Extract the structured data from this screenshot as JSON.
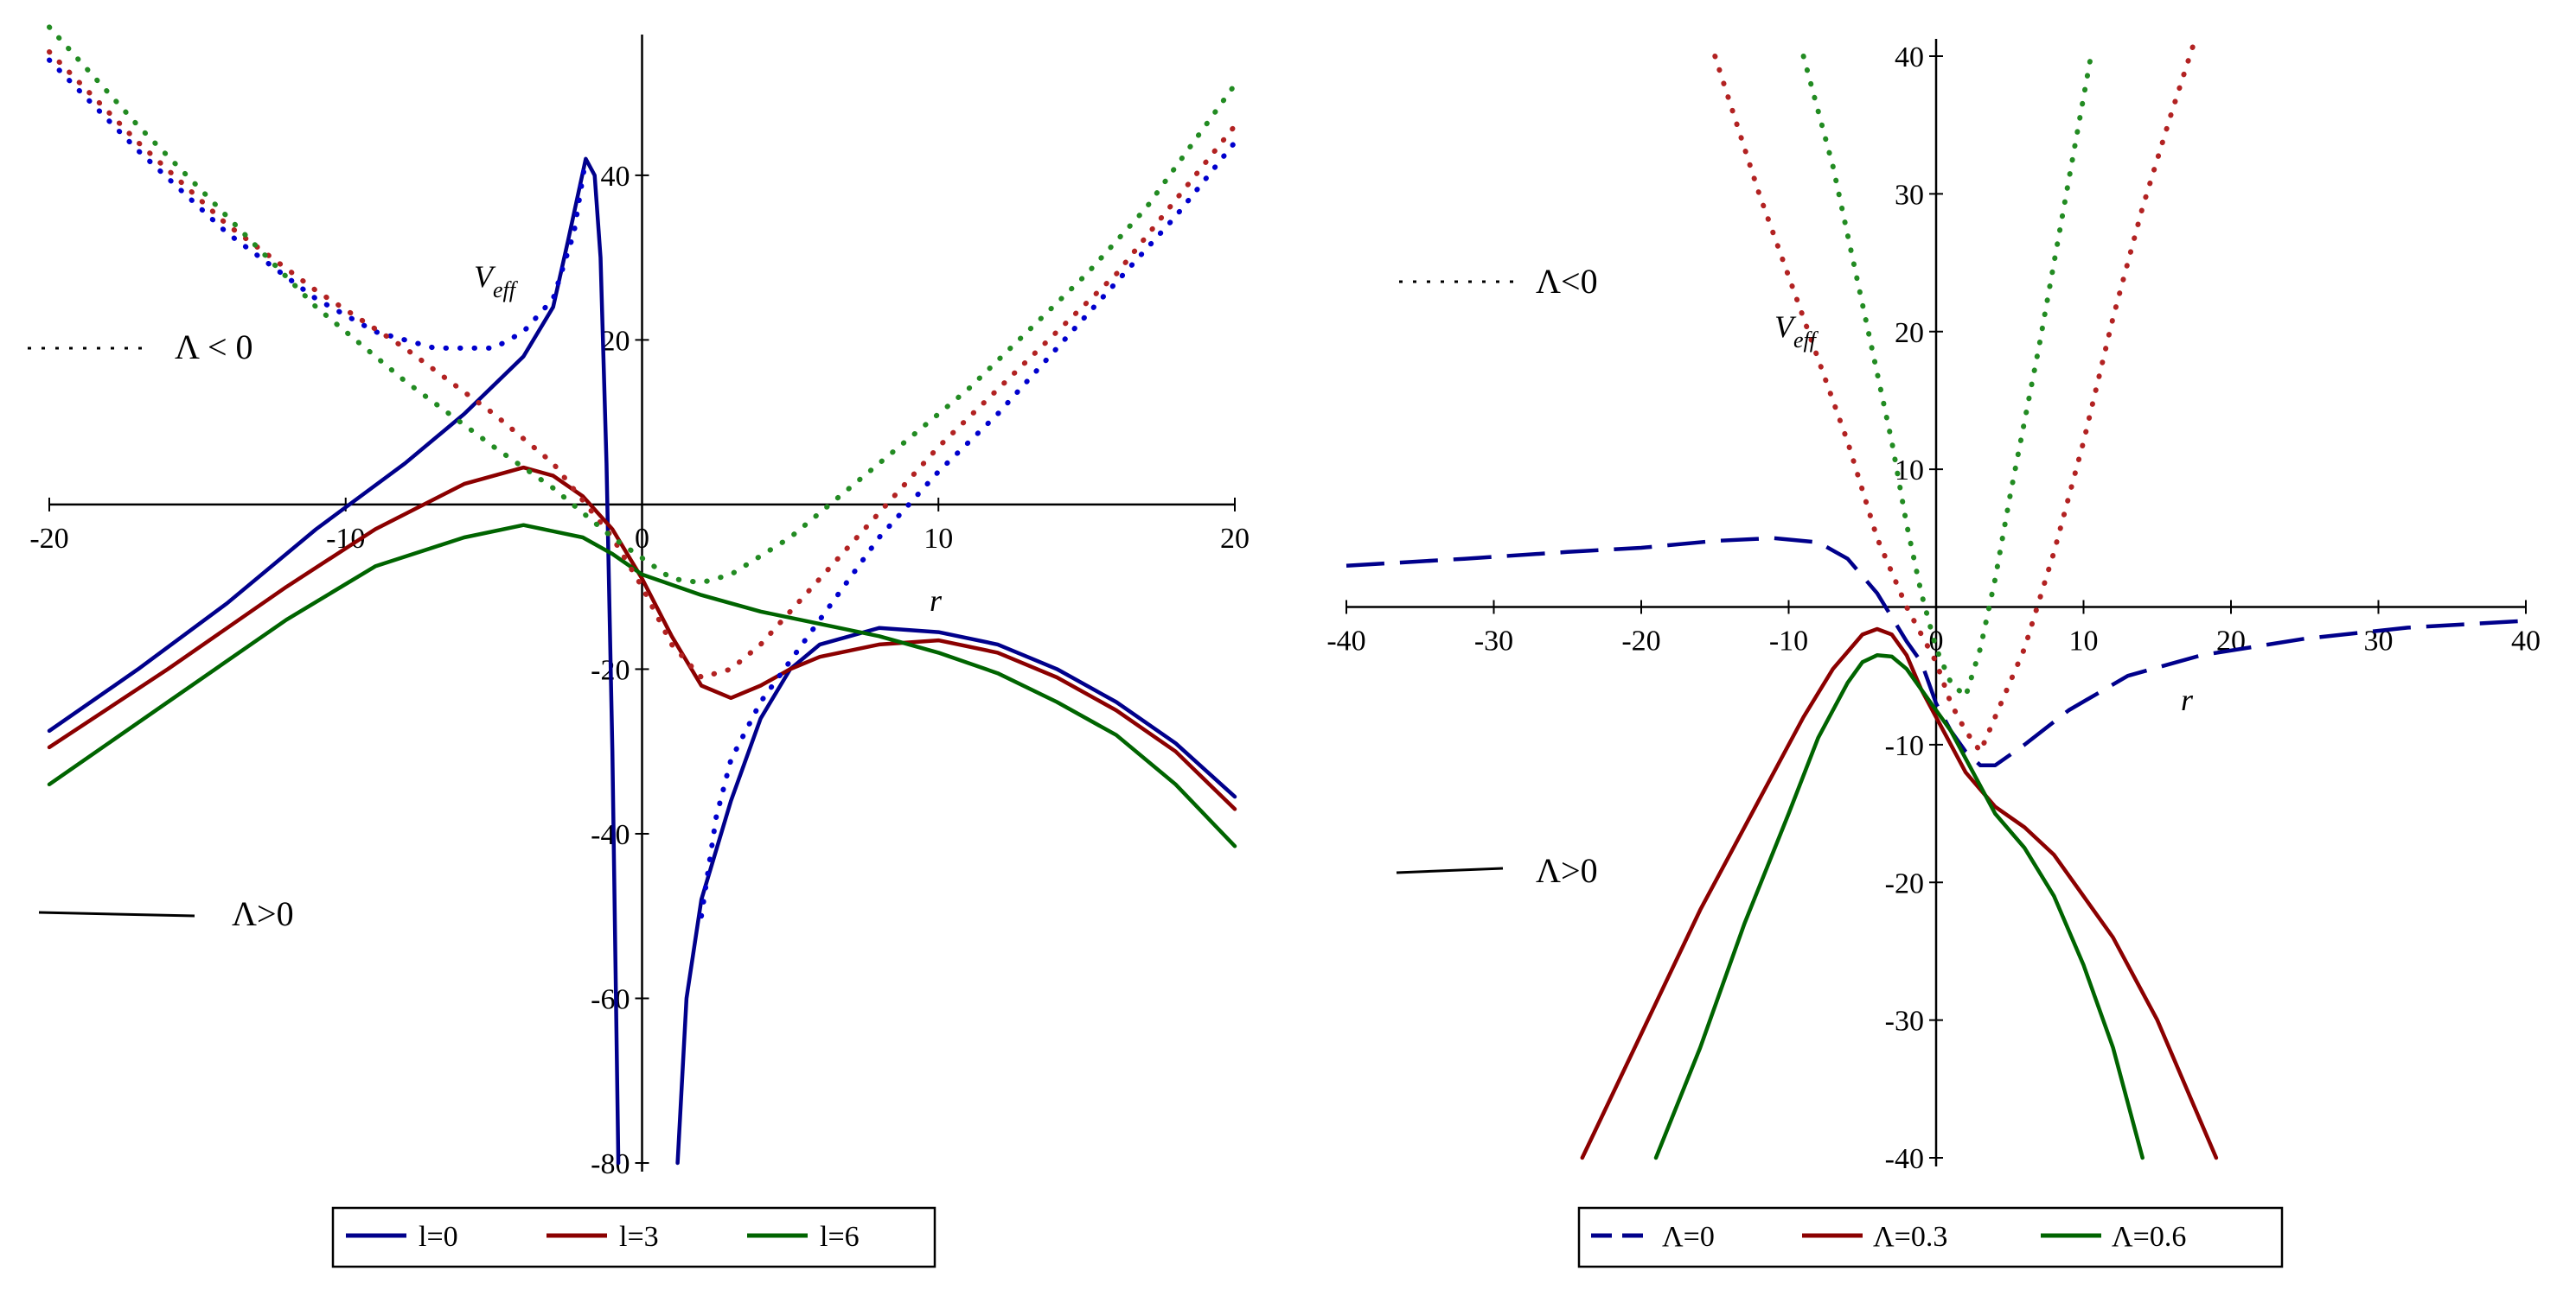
{
  "chart_data": [
    {
      "type": "line",
      "xlim": [
        -20,
        20
      ],
      "ylim": [
        -80,
        55
      ],
      "xticks": [
        -20,
        -10,
        0,
        10,
        20
      ],
      "yticks": [
        -80,
        -60,
        -40,
        -20,
        20,
        40
      ],
      "xtick_labels": [
        "-20",
        "-10",
        "0",
        "10",
        "20"
      ],
      "ytick_labels": [
        "-80",
        "-60",
        "-40",
        "-20",
        "20",
        "40"
      ],
      "xlabel": "r",
      "ylabel": "V",
      "ylabel_sub": "eff",
      "annotation_dotted": "Λ < 0",
      "annotation_solid": "Λ>0",
      "legend": [
        "l=0",
        "l=3",
        "l=6"
      ],
      "legend_position": "bottom",
      "series": [
        {
          "name": "l=0",
          "style": "solid",
          "color": "#00008B",
          "points": [
            [
              -20,
              -27.5
            ],
            [
              -17,
              -20
            ],
            [
              -14,
              -12
            ],
            [
              -11,
              -3
            ],
            [
              -8,
              5
            ],
            [
              -6,
              11
            ],
            [
              -4,
              18
            ],
            [
              -3,
              24
            ],
            [
              -2.5,
              32
            ],
            [
              -1.9,
              42
            ],
            [
              -1.6,
              40
            ],
            [
              -1.4,
              30
            ],
            [
              -1.2,
              5
            ],
            [
              -1.0,
              -30
            ],
            [
              -0.8,
              -80
            ]
          ]
        },
        {
          "name": "l=0",
          "style": "solid",
          "color": "#00008B",
          "points": [
            [
              1.2,
              -80
            ],
            [
              1.5,
              -60
            ],
            [
              2,
              -48
            ],
            [
              3,
              -36
            ],
            [
              4,
              -26
            ],
            [
              5,
              -20
            ],
            [
              6,
              -17
            ],
            [
              8,
              -15
            ],
            [
              10,
              -15.5
            ],
            [
              12,
              -17
            ],
            [
              14,
              -20
            ],
            [
              16,
              -24
            ],
            [
              18,
              -29
            ],
            [
              20,
              -35.5
            ]
          ]
        },
        {
          "name": "l=3",
          "style": "solid",
          "color": "#8B0000",
          "points": [
            [
              -20,
              -29.5
            ],
            [
              -16,
              -20
            ],
            [
              -12,
              -10
            ],
            [
              -9,
              -3
            ],
            [
              -6,
              2.5
            ],
            [
              -4,
              4.5
            ],
            [
              -3,
              3.5
            ],
            [
              -2,
              1
            ],
            [
              -1,
              -3
            ],
            [
              0,
              -9
            ],
            [
              1,
              -16
            ],
            [
              2,
              -22
            ],
            [
              3,
              -23.5
            ],
            [
              4,
              -22
            ],
            [
              5,
              -20
            ],
            [
              6,
              -18.5
            ],
            [
              8,
              -17
            ],
            [
              10,
              -16.5
            ],
            [
              12,
              -18
            ],
            [
              14,
              -21
            ],
            [
              16,
              -25
            ],
            [
              18,
              -30
            ],
            [
              20,
              -37
            ]
          ]
        },
        {
          "name": "l=6",
          "style": "solid",
          "color": "#006400",
          "points": [
            [
              -20,
              -34
            ],
            [
              -16,
              -24
            ],
            [
              -12,
              -14
            ],
            [
              -9,
              -7.5
            ],
            [
              -6,
              -4
            ],
            [
              -4,
              -2.5
            ],
            [
              -2,
              -4
            ],
            [
              -1,
              -6
            ],
            [
              0,
              -8.5
            ],
            [
              2,
              -11
            ],
            [
              4,
              -13
            ],
            [
              6,
              -14.5
            ],
            [
              8,
              -16
            ],
            [
              10,
              -18
            ],
            [
              12,
              -20.5
            ],
            [
              14,
              -24
            ],
            [
              16,
              -28
            ],
            [
              18,
              -34
            ],
            [
              20,
              -41.5
            ]
          ]
        },
        {
          "name": "l=0",
          "style": "dotted",
          "color": "#0000CD",
          "points": [
            [
              -20,
              54
            ],
            [
              -17,
              43
            ],
            [
              -14,
              33
            ],
            [
              -11,
              25
            ],
            [
              -9,
              21
            ],
            [
              -7,
              19
            ],
            [
              -5,
              19
            ],
            [
              -4,
              21
            ],
            [
              -3,
              25
            ],
            [
              -2.3,
              33
            ],
            [
              -1.9,
              42
            ]
          ]
        },
        {
          "name": "l=0",
          "style": "dotted",
          "color": "#0000CD",
          "points": [
            [
              2,
              -50
            ],
            [
              2.5,
              -38
            ],
            [
              3,
              -31
            ],
            [
              4,
              -24
            ],
            [
              5,
              -19
            ],
            [
              6,
              -14
            ],
            [
              8,
              -4
            ],
            [
              10,
              4
            ],
            [
              12,
              11
            ],
            [
              14,
              19
            ],
            [
              16,
              27
            ],
            [
              18,
              35
            ],
            [
              20,
              44
            ]
          ]
        },
        {
          "name": "l=3",
          "style": "dotted",
          "color": "#B22222",
          "points": [
            [
              -20,
              55
            ],
            [
              -17,
              44
            ],
            [
              -14,
              34
            ],
            [
              -11,
              26
            ],
            [
              -8,
              19
            ],
            [
              -5,
              11
            ],
            [
              -3,
              5
            ],
            [
              -1,
              -4
            ],
            [
              0,
              -10
            ],
            [
              1,
              -17
            ],
            [
              2,
              -21
            ],
            [
              3,
              -20
            ],
            [
              4,
              -17
            ],
            [
              6,
              -9
            ],
            [
              8,
              -1
            ],
            [
              10,
              7
            ],
            [
              12,
              14
            ],
            [
              14,
              21
            ],
            [
              16,
              28
            ],
            [
              18,
              37
            ],
            [
              20,
              46
            ]
          ]
        },
        {
          "name": "l=6",
          "style": "dotted",
          "color": "#228B22",
          "points": [
            [
              -20,
              58
            ],
            [
              -17,
              46
            ],
            [
              -14,
              35
            ],
            [
              -11,
              24
            ],
            [
              -8,
              15
            ],
            [
              -5,
              7
            ],
            [
              -3,
              2
            ],
            [
              -1,
              -4
            ],
            [
              1,
              -9
            ],
            [
              2,
              -9.5
            ],
            [
              3,
              -8.5
            ],
            [
              5,
              -4
            ],
            [
              7,
              2
            ],
            [
              9,
              8
            ],
            [
              11,
              14
            ],
            [
              13,
              21
            ],
            [
              15,
              28
            ],
            [
              17,
              36
            ],
            [
              20,
              51
            ]
          ]
        }
      ]
    },
    {
      "type": "line",
      "xlim": [
        -40,
        40
      ],
      "ylim": [
        -40,
        40
      ],
      "xticks": [
        -40,
        -30,
        -20,
        -10,
        0,
        10,
        20,
        30,
        40
      ],
      "yticks": [
        -40,
        -30,
        -20,
        -10,
        10,
        20,
        30,
        40
      ],
      "xtick_labels": [
        "-40",
        "-30",
        "-20",
        "-10",
        "0",
        "10",
        "20",
        "30",
        "40"
      ],
      "ytick_labels": [
        "-40",
        "-30",
        "-20",
        "-10",
        "10",
        "20",
        "30",
        "40"
      ],
      "xlabel": "r",
      "ylabel": "V",
      "ylabel_sub": "eff",
      "annotation_dotted": "Λ<0",
      "annotation_solid": "Λ>0",
      "legend": [
        "Λ=0",
        "Λ=0.3",
        "Λ=0.6"
      ],
      "legend_position": "bottom",
      "series": [
        {
          "name": "Λ=0",
          "style": "dashed",
          "color": "#00008B",
          "points": [
            [
              -40,
              3
            ],
            [
              -32,
              3.5
            ],
            [
              -25,
              4
            ],
            [
              -20,
              4.3
            ],
            [
              -15,
              4.8
            ],
            [
              -11,
              5
            ],
            [
              -8,
              4.7
            ],
            [
              -6,
              3.5
            ],
            [
              -4,
              1
            ],
            [
              -2,
              -2.5
            ],
            [
              -1,
              -4
            ],
            [
              0,
              -7
            ],
            [
              1,
              -9
            ],
            [
              2,
              -10.5
            ],
            [
              3,
              -11.5
            ],
            [
              4,
              -11.5
            ],
            [
              6,
              -10
            ],
            [
              9,
              -7.5
            ],
            [
              13,
              -5
            ],
            [
              18,
              -3.5
            ],
            [
              25,
              -2.3
            ],
            [
              32,
              -1.5
            ],
            [
              40,
              -1
            ]
          ]
        },
        {
          "name": "Λ=0.3",
          "style": "solid",
          "color": "#8B0000",
          "points": [
            [
              -24,
              -40
            ],
            [
              -20,
              -31
            ],
            [
              -16,
              -22
            ],
            [
              -12,
              -14
            ],
            [
              -9,
              -8
            ],
            [
              -7,
              -4.5
            ],
            [
              -5,
              -2
            ],
            [
              -4,
              -1.6
            ],
            [
              -3,
              -2
            ],
            [
              -2,
              -3.5
            ],
            [
              -1,
              -6
            ],
            [
              0,
              -8
            ],
            [
              1,
              -10
            ],
            [
              2,
              -12
            ],
            [
              4,
              -14.5
            ],
            [
              6,
              -16
            ],
            [
              8,
              -18
            ],
            [
              10,
              -21
            ],
            [
              12,
              -24
            ],
            [
              15,
              -30
            ],
            [
              17,
              -35
            ],
            [
              19,
              -40
            ]
          ]
        },
        {
          "name": "Λ=0.6",
          "style": "solid",
          "color": "#006400",
          "points": [
            [
              -19,
              -40
            ],
            [
              -16,
              -32
            ],
            [
              -13,
              -23
            ],
            [
              -10,
              -15
            ],
            [
              -8,
              -9.5
            ],
            [
              -6,
              -5.5
            ],
            [
              -5,
              -4
            ],
            [
              -4,
              -3.5
            ],
            [
              -3,
              -3.6
            ],
            [
              -2,
              -4.5
            ],
            [
              -1,
              -6
            ],
            [
              0,
              -7.5
            ],
            [
              1,
              -9
            ],
            [
              2,
              -11
            ],
            [
              3,
              -13
            ],
            [
              4,
              -15
            ],
            [
              6,
              -17.5
            ],
            [
              8,
              -21
            ],
            [
              10,
              -26
            ],
            [
              12,
              -32
            ],
            [
              14,
              -40
            ]
          ]
        },
        {
          "name": "Λ=0.3",
          "style": "dotted",
          "color": "#B22222",
          "points": [
            [
              -15,
              40
            ],
            [
              -12,
              30
            ],
            [
              -9,
              21
            ],
            [
              -6,
              12
            ],
            [
              -4,
              5
            ],
            [
              -2,
              0
            ],
            [
              0,
              -4
            ],
            [
              1,
              -7
            ],
            [
              2,
              -9
            ],
            [
              3,
              -10.5
            ],
            [
              4,
              -8
            ],
            [
              6,
              -3
            ],
            [
              8,
              4
            ],
            [
              10,
              12
            ],
            [
              12,
              21
            ],
            [
              14,
              29
            ],
            [
              16,
              36
            ],
            [
              17.5,
              41
            ]
          ]
        },
        {
          "name": "Λ=0.6",
          "style": "dotted",
          "color": "#228B22",
          "points": [
            [
              -9,
              40
            ],
            [
              -7,
              32
            ],
            [
              -5,
              22
            ],
            [
              -3,
              12
            ],
            [
              -2,
              6
            ],
            [
              -1,
              1
            ],
            [
              0,
              -3
            ],
            [
              1,
              -5.5
            ],
            [
              2,
              -6.5
            ],
            [
              3,
              -3
            ],
            [
              4,
              2
            ],
            [
              5,
              8
            ],
            [
              7,
              19
            ],
            [
              9,
              31
            ],
            [
              10.5,
              40
            ]
          ]
        }
      ]
    }
  ]
}
